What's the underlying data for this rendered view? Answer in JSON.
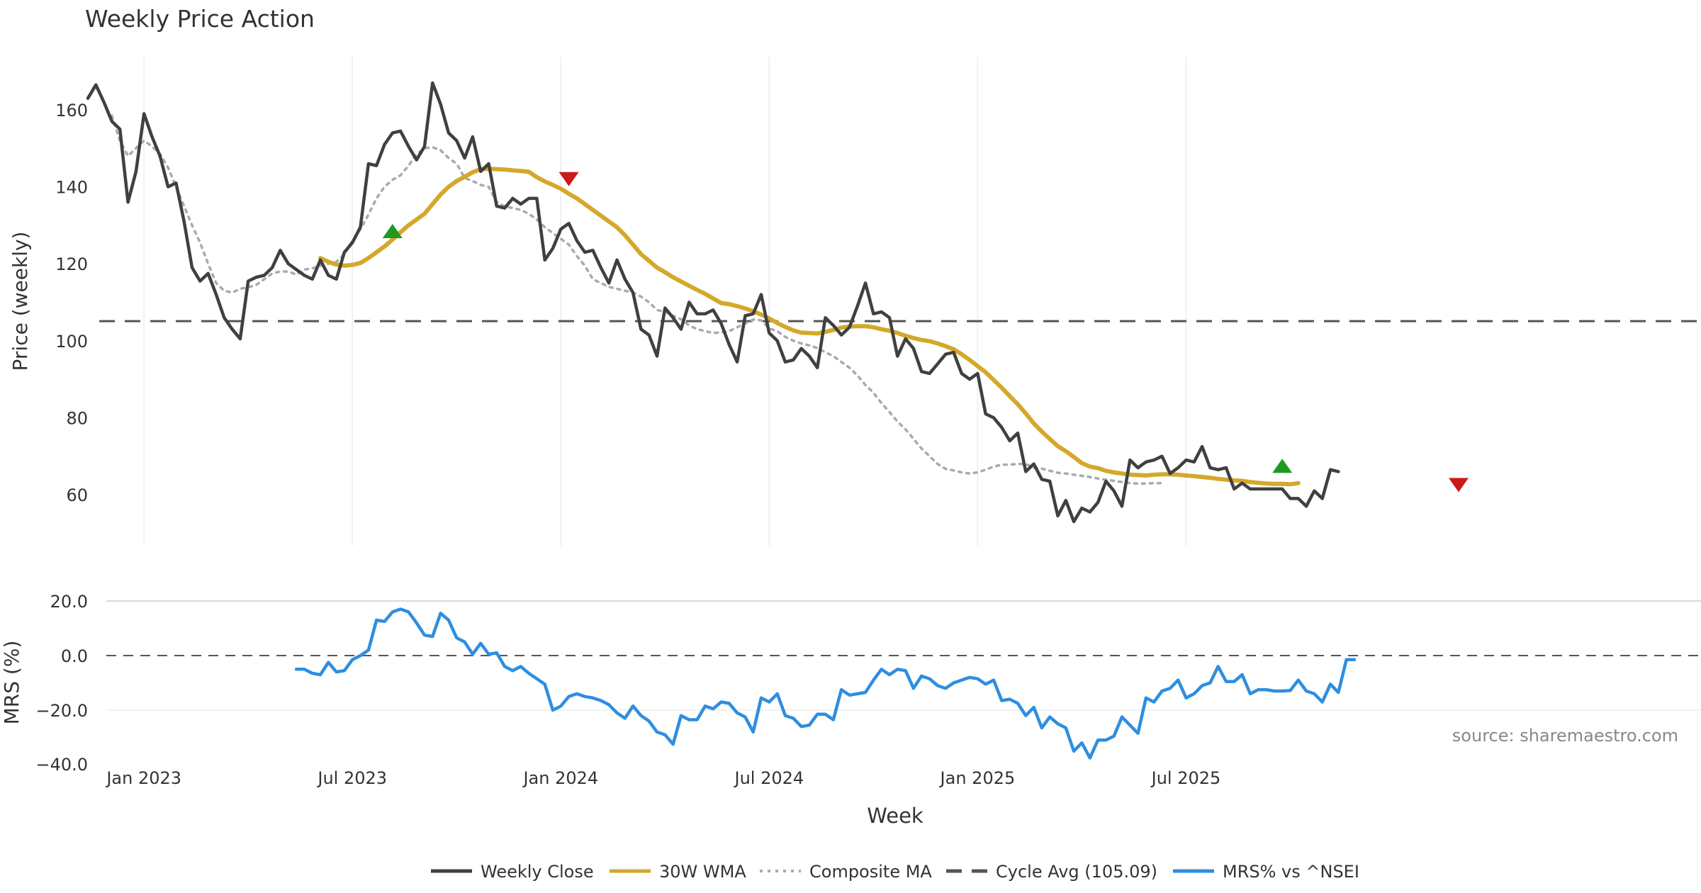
{
  "chart_data": {
    "type": "line",
    "title": "Weekly Price Action",
    "xlabel": "Week",
    "source_note": "source: sharemaestro.com",
    "x_ticks": [
      "Jan 2023",
      "Jul 2023",
      "Jan 2024",
      "Jul 2024",
      "Jan 2025",
      "Jul 2025"
    ],
    "price_panel": {
      "ylabel": "Price (weekly)",
      "ylim": [
        48,
        173
      ],
      "y_ticks": [
        "60",
        "80",
        "100",
        "120",
        "140",
        "160"
      ],
      "y_tick_values": [
        60,
        80,
        100,
        120,
        140,
        160
      ],
      "grid": true
    },
    "mrs_panel": {
      "ylabel": "MRS (%)",
      "ylim": [
        -40,
        20
      ],
      "y_ticks": [
        "20.0",
        "0.0",
        "−20.0",
        "−40.0"
      ],
      "y_tick_values": [
        20,
        0,
        -20,
        -40
      ],
      "zero_line": 0
    },
    "x_start": "2022-11-14",
    "series": [
      {
        "name": "Weekly Close",
        "panel": "price",
        "color": "#404040",
        "style": "solid",
        "start_week": 0,
        "values": [
          163,
          166.5,
          162,
          157,
          155,
          136,
          144,
          159,
          153,
          148,
          140,
          141,
          131,
          119,
          115.5,
          117.5,
          112,
          106,
          103,
          100.5,
          115.5,
          116.5,
          117,
          119,
          123.5,
          120,
          118.5,
          117,
          116,
          121,
          117,
          116,
          123,
          125.5,
          129.5,
          146,
          145.5,
          151,
          154,
          154.5,
          150.5,
          147,
          150.5,
          167,
          161.5,
          154,
          152,
          147.5,
          153,
          144,
          146,
          135,
          134.5,
          137,
          135.5,
          137,
          137,
          121,
          124,
          129,
          130.5,
          126,
          123,
          123.5,
          119,
          115,
          121,
          116,
          112.5,
          103,
          101.5,
          96,
          108.5,
          106,
          103,
          110,
          107,
          107,
          108,
          104.5,
          99,
          94.5,
          106.5,
          107,
          112,
          102,
          100,
          94.5,
          95,
          98,
          96,
          93,
          106,
          104,
          101.5,
          103.5,
          109,
          115,
          107,
          107.5,
          106,
          96,
          100.5,
          98,
          92,
          91.5,
          94,
          96.5,
          97,
          91.5,
          90,
          91.5,
          81,
          80,
          77.5,
          74,
          76,
          66,
          68,
          64,
          63.5,
          54.5,
          58.5,
          53,
          56.5,
          55.5,
          58,
          63.5,
          61,
          57,
          69,
          67,
          68.5,
          69,
          70,
          65.5,
          67,
          69,
          68.5,
          72.5,
          67,
          66.5,
          67,
          61.5,
          63,
          61.5,
          61.5,
          61.5,
          61.5,
          61.5,
          59,
          59,
          57,
          61,
          59,
          66.5,
          66
        ]
      },
      {
        "name": "30W WMA",
        "panel": "price",
        "color": "#d4a82a",
        "style": "solid",
        "start_week": 29,
        "values": [
          121.5,
          120.5,
          119.8,
          119.5,
          119.7,
          120.2,
          121.5,
          123,
          124.5,
          126.3,
          128.2,
          130,
          131.5,
          133,
          135.5,
          138,
          140,
          141.5,
          142.6,
          143.8,
          144.6,
          144.7,
          144.6,
          144.5,
          144.3,
          144.1,
          143.9,
          142.5,
          141.4,
          140.5,
          139.5,
          138.2,
          137,
          135.5,
          134,
          132.5,
          131,
          129.5,
          127.4,
          125,
          122.5,
          120.8,
          119,
          117.8,
          116.5,
          115.4,
          114.3,
          113.2,
          112.2,
          111,
          109.8,
          109.5,
          109,
          108.4,
          107.7,
          106.8,
          105.8,
          104.6,
          103.6,
          102.7,
          102.1,
          102,
          101.9,
          102.3,
          102.8,
          103.4,
          103.7,
          103.8,
          103.8,
          103.5,
          103,
          102.6,
          102,
          101.3,
          100.7,
          100.2,
          99.9,
          99.3,
          98.6,
          97.8,
          96.5,
          95,
          93.4,
          91.8,
          89.8,
          87.8,
          85.6,
          83.5,
          81.1,
          78.5,
          76.4,
          74.5,
          72.6,
          71.3,
          69.8,
          68.2,
          67.3,
          66.9,
          66.2,
          65.8,
          65.5,
          65.2,
          65.1,
          65,
          65.2,
          65.3,
          65.3,
          65.2,
          65,
          64.8,
          64.6,
          64.4,
          64.1,
          63.9,
          63.7,
          63.6,
          63.3,
          63.1,
          62.9,
          62.8,
          62.8,
          62.7,
          63
        ]
      },
      {
        "name": "Composite MA",
        "panel": "price",
        "color": "#aaaaaa",
        "style": "dotted",
        "start_week": 3,
        "values": [
          158.5,
          152,
          148,
          150,
          152,
          150.5,
          148.5,
          145,
          140,
          135,
          130,
          125.5,
          120,
          115,
          113,
          112.5,
          113.5,
          113.9,
          114.5,
          116,
          117.5,
          118,
          118,
          117.2,
          118.5,
          118.8,
          119.5,
          120,
          120.5,
          122.5,
          126,
          129,
          132.8,
          137,
          140,
          141.8,
          143,
          145.5,
          148.5,
          150,
          150.3,
          149.5,
          147.5,
          146,
          142.3,
          141.5,
          140.5,
          140,
          136,
          134.9,
          134.5,
          134,
          133,
          131.5,
          129.5,
          128,
          126.5,
          125,
          122,
          119.5,
          116,
          115,
          114,
          113.5,
          113,
          112.5,
          111.5,
          110,
          108,
          107.5,
          106.5,
          105.6,
          104,
          103,
          102.5,
          102,
          102.2,
          102.5,
          103.5,
          104.5,
          105.5,
          105.3,
          103.2,
          102.5,
          101,
          100,
          99.3,
          98.8,
          98.1,
          97,
          96,
          94.5,
          93,
          91,
          88.5,
          86.5,
          83.8,
          81.5,
          79,
          77,
          74.5,
          72,
          70,
          68,
          66.7,
          66.3,
          65.8,
          65.5,
          65.8,
          66.5,
          67.3,
          67.8,
          67.8,
          68,
          68,
          67,
          66.8,
          66.2,
          65.7,
          65.5,
          65.2,
          64.9,
          64.6,
          64.2,
          63.9,
          63.6,
          63.3,
          63,
          62.9,
          62.9,
          63,
          63
        ]
      },
      {
        "name": "Cycle Avg (105.09)",
        "panel": "price",
        "color": "#555555",
        "style": "dashed",
        "constant": 105.09
      },
      {
        "name": "MRS% vs ^NSEI",
        "panel": "mrs",
        "color": "#2e8ee0",
        "style": "solid",
        "start_week": 26,
        "values": [
          -5,
          -5,
          -6.5,
          -7,
          -2.5,
          -6,
          -5.5,
          -1.5,
          0,
          2,
          13,
          12.5,
          16,
          17,
          16,
          12,
          7.5,
          7,
          15.5,
          13,
          6.5,
          5,
          0.5,
          4.5,
          0.5,
          1,
          -4,
          -5.5,
          -4,
          -6.5,
          -8.5,
          -10.5,
          -20,
          -18.5,
          -15,
          -14,
          -15,
          -15.5,
          -16.5,
          -18,
          -21,
          -23,
          -18.5,
          -22,
          -24,
          -28,
          -29,
          -32.5,
          -22,
          -23.5,
          -23.5,
          -18.5,
          -19.5,
          -17,
          -17.5,
          -21,
          -22.5,
          -28,
          -15.5,
          -17,
          -14,
          -22,
          -23,
          -26,
          -25.5,
          -21.5,
          -21.5,
          -23.5,
          -12.5,
          -14.5,
          -14,
          -13.5,
          -9,
          -5,
          -7,
          -5,
          -5.5,
          -12,
          -7.5,
          -8.5,
          -11,
          -12,
          -10,
          -9,
          -8,
          -8.5,
          -10.5,
          -9,
          -16.5,
          -16,
          -17.5,
          -22,
          -19,
          -26.5,
          -22.5,
          -25,
          -26.5,
          -35,
          -32,
          -37.5,
          -31,
          -31,
          -29.5,
          -22.5,
          -25.5,
          -28.5,
          -15.5,
          -17,
          -13,
          -12,
          -9,
          -15.5,
          -14,
          -11,
          -10,
          -4,
          -9.5,
          -9.5,
          -7,
          -14,
          -12.5,
          -12.5,
          -13,
          -13,
          -12.8,
          -9,
          -13,
          -14,
          -17,
          -10.5,
          -13.5,
          -1.5,
          -1.5
        ]
      }
    ],
    "markers": [
      {
        "type": "buy",
        "shape": "triangle-up",
        "color": "#1f9a1f",
        "week": 38,
        "y": 128.5
      },
      {
        "type": "sell",
        "shape": "triangle-down",
        "color": "#cc1a1a",
        "week": 60,
        "y": 142
      },
      {
        "type": "buy",
        "shape": "triangle-up",
        "color": "#1f9a1f",
        "week": 149,
        "y": 67.5
      },
      {
        "type": "sell",
        "shape": "triangle-down",
        "color": "#cc1a1a",
        "week": 171,
        "y": 62.5
      }
    ],
    "legend": {
      "placement": "bottom-center",
      "entries": [
        "Weekly Close",
        "30W WMA",
        "Composite MA",
        "Cycle Avg (105.09)",
        "MRS% vs ^NSEI"
      ]
    }
  }
}
